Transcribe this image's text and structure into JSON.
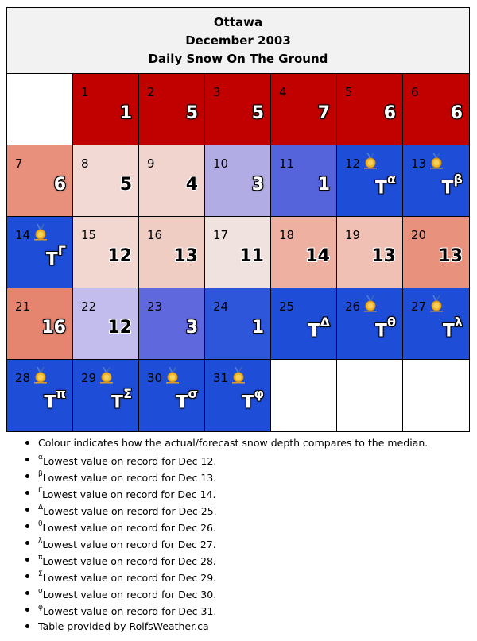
{
  "header": {
    "city": "Ottawa",
    "month": "December 2003",
    "subtitle": "Daily Snow On The Ground"
  },
  "calendar": [
    {
      "day": "",
      "value": "",
      "sup": "",
      "color": "#ffffff",
      "text": "light",
      "medal": false
    },
    {
      "day": "1",
      "value": "1",
      "sup": "",
      "color": "#c10000",
      "text": "light",
      "medal": false
    },
    {
      "day": "2",
      "value": "5",
      "sup": "",
      "color": "#c10000",
      "text": "light",
      "medal": false
    },
    {
      "day": "3",
      "value": "5",
      "sup": "",
      "color": "#c10000",
      "text": "light",
      "medal": false
    },
    {
      "day": "4",
      "value": "7",
      "sup": "",
      "color": "#c10000",
      "text": "light",
      "medal": false
    },
    {
      "day": "5",
      "value": "6",
      "sup": "",
      "color": "#c10000",
      "text": "light",
      "medal": false
    },
    {
      "day": "6",
      "value": "6",
      "sup": "",
      "color": "#c10000",
      "text": "light",
      "medal": false
    },
    {
      "day": "7",
      "value": "6",
      "sup": "",
      "color": "#e8907c",
      "text": "light",
      "medal": false
    },
    {
      "day": "8",
      "value": "5",
      "sup": "",
      "color": "#f2d9d4",
      "text": "dark",
      "medal": false
    },
    {
      "day": "9",
      "value": "4",
      "sup": "",
      "color": "#f1d4cd",
      "text": "dark",
      "medal": false
    },
    {
      "day": "10",
      "value": "3",
      "sup": "",
      "color": "#b2ace5",
      "text": "light",
      "medal": false
    },
    {
      "day": "11",
      "value": "1",
      "sup": "",
      "color": "#5664dc",
      "text": "light",
      "medal": false
    },
    {
      "day": "12",
      "value": "T",
      "sup": "α",
      "color": "#1e4ed8",
      "text": "light",
      "medal": true
    },
    {
      "day": "13",
      "value": "T",
      "sup": "β",
      "color": "#1e4ed8",
      "text": "light",
      "medal": true
    },
    {
      "day": "14",
      "value": "T",
      "sup": "Γ",
      "color": "#1e4ed8",
      "text": "light",
      "medal": true
    },
    {
      "day": "15",
      "value": "12",
      "sup": "",
      "color": "#f1d7d0",
      "text": "dark",
      "medal": false
    },
    {
      "day": "16",
      "value": "13",
      "sup": "",
      "color": "#f0cdc3",
      "text": "dark",
      "medal": false
    },
    {
      "day": "17",
      "value": "11",
      "sup": "",
      "color": "#efe2df",
      "text": "dark",
      "medal": false
    },
    {
      "day": "18",
      "value": "14",
      "sup": "",
      "color": "#edb0a1",
      "text": "dark",
      "medal": false
    },
    {
      "day": "19",
      "value": "13",
      "sup": "",
      "color": "#efc0b3",
      "text": "dark",
      "medal": false
    },
    {
      "day": "20",
      "value": "13",
      "sup": "",
      "color": "#e8927e",
      "text": "dark",
      "medal": false
    },
    {
      "day": "21",
      "value": "16",
      "sup": "",
      "color": "#e5846f",
      "text": "light",
      "medal": false
    },
    {
      "day": "22",
      "value": "12",
      "sup": "",
      "color": "#c2bdec",
      "text": "dark",
      "medal": false
    },
    {
      "day": "23",
      "value": "3",
      "sup": "",
      "color": "#6068de",
      "text": "light",
      "medal": false
    },
    {
      "day": "24",
      "value": "1",
      "sup": "",
      "color": "#2e56db",
      "text": "light",
      "medal": false
    },
    {
      "day": "25",
      "value": "T",
      "sup": "Δ",
      "color": "#1e4ed8",
      "text": "light",
      "medal": false
    },
    {
      "day": "26",
      "value": "T",
      "sup": "θ",
      "color": "#1e4ed8",
      "text": "light",
      "medal": true
    },
    {
      "day": "27",
      "value": "T",
      "sup": "λ",
      "color": "#1e4ed8",
      "text": "light",
      "medal": true
    },
    {
      "day": "28",
      "value": "T",
      "sup": "π",
      "color": "#1e4ed8",
      "text": "light",
      "medal": true
    },
    {
      "day": "29",
      "value": "T",
      "sup": "Σ",
      "color": "#1e4ed8",
      "text": "light",
      "medal": true
    },
    {
      "day": "30",
      "value": "T",
      "sup": "σ",
      "color": "#1e4ed8",
      "text": "light",
      "medal": true
    },
    {
      "day": "31",
      "value": "T",
      "sup": "φ",
      "color": "#1e4ed8",
      "text": "light",
      "medal": true
    },
    {
      "day": "",
      "value": "",
      "sup": "",
      "color": "#ffffff",
      "text": "light",
      "medal": false
    },
    {
      "day": "",
      "value": "",
      "sup": "",
      "color": "#ffffff",
      "text": "light",
      "medal": false
    },
    {
      "day": "",
      "value": "",
      "sup": "",
      "color": "#ffffff",
      "text": "light",
      "medal": false
    }
  ],
  "notes": [
    {
      "sup": "",
      "text": "Colour indicates how the actual/forecast snow depth compares to the median."
    },
    {
      "sup": "α",
      "text": "Lowest value on record for Dec 12."
    },
    {
      "sup": "β",
      "text": "Lowest value on record for Dec 13."
    },
    {
      "sup": "Γ",
      "text": "Lowest value on record for Dec 14."
    },
    {
      "sup": "Δ",
      "text": "Lowest value on record for Dec 25."
    },
    {
      "sup": "θ",
      "text": "Lowest value on record for Dec 26."
    },
    {
      "sup": "λ",
      "text": "Lowest value on record for Dec 27."
    },
    {
      "sup": "π",
      "text": "Lowest value on record for Dec 28."
    },
    {
      "sup": "Σ",
      "text": "Lowest value on record for Dec 29."
    },
    {
      "sup": "σ",
      "text": "Lowest value on record for Dec 30."
    },
    {
      "sup": "φ",
      "text": "Lowest value on record for Dec 31."
    },
    {
      "sup": "",
      "text": "Table provided by RolfsWeather.ca"
    }
  ],
  "icons": {
    "medal": "medal-icon"
  }
}
